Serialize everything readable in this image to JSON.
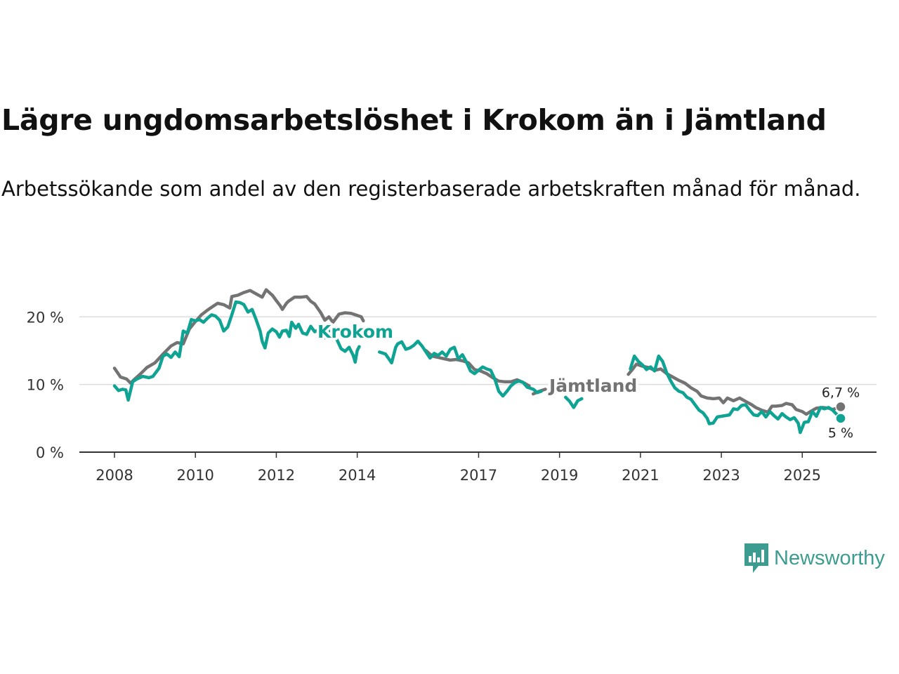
{
  "title": "Lägre ungdomsarbetslöshet i Krokom än i Jämtland",
  "subtitle": "Arbetssökande som andel av den registerbaserade arbetskraften månad för månad.",
  "brand": {
    "name": "Newsworthy",
    "color": "#3c9c8f",
    "icon": "newsworthy-logo-icon"
  },
  "chart_data": {
    "type": "line",
    "title": "Lägre ungdomsarbetslöshet i Krokom än i Jämtland",
    "xlabel": "",
    "ylabel": "",
    "xlim": [
      2008,
      2025.95
    ],
    "ylim": [
      0,
      22
    ],
    "yticks": [
      {
        "value": 0,
        "label": "0 %"
      },
      {
        "value": 10,
        "label": "10 %"
      },
      {
        "value": 20,
        "label": "20 %"
      }
    ],
    "xticks": [
      {
        "value": 2008,
        "label": "2008"
      },
      {
        "value": 2010,
        "label": "2010"
      },
      {
        "value": 2012,
        "label": "2012"
      },
      {
        "value": 2014,
        "label": "2014"
      },
      {
        "value": 2017,
        "label": "2017"
      },
      {
        "value": 2019,
        "label": "2019"
      },
      {
        "value": 2021,
        "label": "2021"
      },
      {
        "value": 2023,
        "label": "2023"
      },
      {
        "value": 2025,
        "label": "2025"
      }
    ],
    "grid": "horizontal",
    "series": [
      {
        "name": "Jämtland",
        "color": "#737373",
        "label": "Jämtland",
        "end_label": "6,7 %",
        "end_value": 6.7,
        "points": [
          [
            2008.0,
            12.4
          ],
          [
            2008.15,
            11.1
          ],
          [
            2008.3,
            10.8
          ],
          [
            2008.4,
            10.2
          ],
          [
            2008.5,
            10.8
          ],
          [
            2008.65,
            11.6
          ],
          [
            2008.8,
            12.5
          ],
          [
            2009.0,
            13.2
          ],
          [
            2009.2,
            14.5
          ],
          [
            2009.4,
            15.7
          ],
          [
            2009.55,
            16.2
          ],
          [
            2009.7,
            16.0
          ],
          [
            2009.85,
            18.2
          ],
          [
            2010.0,
            19.3
          ],
          [
            2010.15,
            20.3
          ],
          [
            2010.3,
            21.0
          ],
          [
            2010.45,
            21.6
          ],
          [
            2010.55,
            22.0
          ],
          [
            2010.7,
            21.8
          ],
          [
            2010.85,
            21.3
          ],
          [
            2010.9,
            23.0
          ],
          [
            2011.05,
            23.2
          ],
          [
            2011.2,
            23.6
          ],
          [
            2011.35,
            23.9
          ],
          [
            2011.5,
            23.4
          ],
          [
            2011.65,
            22.9
          ],
          [
            2011.75,
            24.0
          ],
          [
            2011.9,
            23.2
          ],
          [
            2012.0,
            22.4
          ],
          [
            2012.1,
            21.6
          ],
          [
            2012.15,
            21.1
          ],
          [
            2012.25,
            22.0
          ],
          [
            2012.3,
            22.3
          ],
          [
            2012.45,
            22.9
          ],
          [
            2012.6,
            22.9
          ],
          [
            2012.75,
            23.0
          ],
          [
            2012.85,
            22.3
          ],
          [
            2012.95,
            21.9
          ],
          [
            2013.1,
            20.6
          ],
          [
            2013.2,
            19.5
          ],
          [
            2013.3,
            20.0
          ],
          [
            2013.4,
            19.2
          ],
          [
            2013.55,
            20.4
          ],
          [
            2013.7,
            20.6
          ],
          [
            2013.85,
            20.5
          ],
          [
            2014.0,
            20.2
          ],
          [
            2014.1,
            20.0
          ],
          [
            2014.15,
            19.4
          ]
        ],
        "segments2": [
          [
            2018.35,
            8.6
          ],
          [
            2018.5,
            9.0
          ],
          [
            2018.65,
            9.3
          ]
        ],
        "segments3": [
          [
            2020.7,
            11.5
          ],
          [
            2020.8,
            12.2
          ],
          [
            2020.9,
            13.0
          ],
          [
            2021.05,
            12.7
          ],
          [
            2021.2,
            12.5
          ],
          [
            2021.35,
            12.1
          ],
          [
            2021.5,
            12.3
          ],
          [
            2021.65,
            11.6
          ],
          [
            2021.8,
            11.1
          ],
          [
            2021.95,
            10.6
          ],
          [
            2022.1,
            10.2
          ],
          [
            2022.25,
            9.5
          ],
          [
            2022.4,
            9.0
          ],
          [
            2022.5,
            8.3
          ],
          [
            2022.65,
            8.0
          ],
          [
            2022.8,
            7.9
          ],
          [
            2022.95,
            8.0
          ],
          [
            2023.05,
            7.3
          ],
          [
            2023.15,
            8.0
          ],
          [
            2023.3,
            7.6
          ],
          [
            2023.45,
            8.0
          ],
          [
            2023.6,
            7.5
          ],
          [
            2023.75,
            7.0
          ],
          [
            2023.85,
            6.6
          ],
          [
            2024.0,
            6.2
          ],
          [
            2024.15,
            5.9
          ],
          [
            2024.25,
            6.8
          ],
          [
            2024.35,
            6.8
          ],
          [
            2024.5,
            6.9
          ],
          [
            2024.6,
            7.2
          ],
          [
            2024.75,
            7.0
          ],
          [
            2024.85,
            6.3
          ],
          [
            2025.0,
            6.0
          ],
          [
            2025.1,
            5.6
          ],
          [
            2025.2,
            6.0
          ],
          [
            2025.35,
            6.5
          ],
          [
            2025.5,
            6.6
          ],
          [
            2025.65,
            6.5
          ],
          [
            2025.75,
            6.3
          ],
          [
            2025.85,
            6.5
          ],
          [
            2025.95,
            6.7
          ]
        ],
        "segments_mid": [
          [
            2015.7,
            15.0
          ],
          [
            2015.85,
            14.2
          ],
          [
            2016.0,
            14.0
          ],
          [
            2016.15,
            13.8
          ],
          [
            2016.3,
            13.6
          ],
          [
            2016.45,
            13.7
          ],
          [
            2016.6,
            13.5
          ],
          [
            2016.75,
            13.2
          ],
          [
            2016.9,
            12.2
          ],
          [
            2017.05,
            12.0
          ],
          [
            2017.2,
            11.6
          ],
          [
            2017.35,
            11.0
          ],
          [
            2017.5,
            10.5
          ],
          [
            2017.65,
            10.4
          ],
          [
            2017.8,
            10.4
          ],
          [
            2017.95,
            10.7
          ],
          [
            2018.1,
            10.3
          ],
          [
            2018.25,
            9.8
          ]
        ]
      },
      {
        "name": "Krokom",
        "color": "#0ea393",
        "label": "Krokom",
        "end_label": "5 %",
        "end_value": 5.0,
        "points": [
          [
            2008.0,
            9.8
          ],
          [
            2008.1,
            9.1
          ],
          [
            2008.2,
            9.3
          ],
          [
            2008.28,
            9.2
          ],
          [
            2008.34,
            7.7
          ],
          [
            2008.45,
            10.4
          ],
          [
            2008.55,
            10.8
          ],
          [
            2008.7,
            11.2
          ],
          [
            2008.85,
            11.0
          ],
          [
            2008.95,
            11.2
          ],
          [
            2009.1,
            12.4
          ],
          [
            2009.2,
            14.2
          ],
          [
            2009.3,
            14.5
          ],
          [
            2009.4,
            14.0
          ],
          [
            2009.5,
            14.8
          ],
          [
            2009.6,
            14.1
          ],
          [
            2009.7,
            17.9
          ],
          [
            2009.8,
            17.6
          ],
          [
            2009.9,
            19.6
          ],
          [
            2010.0,
            19.4
          ],
          [
            2010.1,
            19.6
          ],
          [
            2010.2,
            19.2
          ],
          [
            2010.3,
            19.8
          ],
          [
            2010.4,
            20.3
          ],
          [
            2010.5,
            20.1
          ],
          [
            2010.6,
            19.5
          ],
          [
            2010.7,
            17.9
          ],
          [
            2010.8,
            18.5
          ],
          [
            2010.9,
            20.3
          ],
          [
            2011.0,
            22.2
          ],
          [
            2011.1,
            22.1
          ],
          [
            2011.2,
            21.8
          ],
          [
            2011.3,
            20.7
          ],
          [
            2011.4,
            21.1
          ],
          [
            2011.5,
            19.6
          ],
          [
            2011.6,
            17.9
          ],
          [
            2011.65,
            16.4
          ],
          [
            2011.72,
            15.4
          ],
          [
            2011.8,
            17.6
          ],
          [
            2011.9,
            18.2
          ],
          [
            2012.0,
            17.8
          ],
          [
            2012.08,
            17.0
          ],
          [
            2012.15,
            17.9
          ],
          [
            2012.25,
            18.0
          ],
          [
            2012.32,
            17.1
          ],
          [
            2012.38,
            19.2
          ],
          [
            2012.48,
            18.3
          ],
          [
            2012.55,
            18.9
          ],
          [
            2012.65,
            17.6
          ],
          [
            2012.75,
            17.4
          ],
          [
            2012.85,
            18.6
          ],
          [
            2012.95,
            17.8
          ],
          [
            2013.05,
            18.1
          ],
          [
            2013.15,
            17.5
          ],
          [
            2013.2,
            16.9
          ],
          [
            2013.3,
            18.1
          ],
          [
            2013.4,
            17.2
          ],
          [
            2013.5,
            16.6
          ],
          [
            2013.6,
            15.3
          ],
          [
            2013.7,
            14.9
          ],
          [
            2013.8,
            15.5
          ],
          [
            2013.9,
            14.3
          ],
          [
            2013.95,
            13.3
          ],
          [
            2014.0,
            15.0
          ],
          [
            2014.05,
            15.6
          ]
        ],
        "segments_mid": [
          [
            2014.55,
            14.8
          ],
          [
            2014.7,
            14.5
          ],
          [
            2014.85,
            13.2
          ],
          [
            2014.95,
            15.5
          ],
          [
            2015.0,
            16.0
          ],
          [
            2015.1,
            16.3
          ],
          [
            2015.2,
            15.2
          ],
          [
            2015.3,
            15.4
          ],
          [
            2015.4,
            15.8
          ],
          [
            2015.5,
            16.4
          ],
          [
            2015.6,
            15.7
          ],
          [
            2015.7,
            14.8
          ],
          [
            2015.8,
            13.9
          ],
          [
            2015.9,
            14.6
          ],
          [
            2016.0,
            14.3
          ],
          [
            2016.1,
            14.8
          ],
          [
            2016.2,
            14.2
          ],
          [
            2016.3,
            15.2
          ],
          [
            2016.4,
            15.5
          ],
          [
            2016.5,
            13.8
          ],
          [
            2016.6,
            14.4
          ],
          [
            2016.7,
            13.3
          ],
          [
            2016.8,
            12.0
          ],
          [
            2016.9,
            11.6
          ],
          [
            2017.0,
            12.1
          ],
          [
            2017.1,
            12.6
          ],
          [
            2017.2,
            12.3
          ],
          [
            2017.3,
            12.1
          ],
          [
            2017.4,
            10.8
          ],
          [
            2017.5,
            9.0
          ],
          [
            2017.6,
            8.3
          ],
          [
            2017.7,
            9.0
          ],
          [
            2017.8,
            9.8
          ],
          [
            2017.9,
            10.3
          ],
          [
            2018.0,
            10.5
          ],
          [
            2018.1,
            10.3
          ],
          [
            2018.2,
            9.6
          ],
          [
            2018.35,
            9.3
          ],
          [
            2018.45,
            8.8
          ],
          [
            2018.55,
            9.0
          ]
        ],
        "segments2": [
          [
            2019.15,
            8.1
          ],
          [
            2019.25,
            7.5
          ],
          [
            2019.35,
            6.6
          ],
          [
            2019.45,
            7.6
          ],
          [
            2019.55,
            7.9
          ]
        ],
        "segments3": [
          [
            2020.75,
            12.3
          ],
          [
            2020.85,
            14.2
          ],
          [
            2020.95,
            13.4
          ],
          [
            2021.05,
            12.9
          ],
          [
            2021.15,
            12.2
          ],
          [
            2021.25,
            12.6
          ],
          [
            2021.35,
            12.0
          ],
          [
            2021.45,
            14.2
          ],
          [
            2021.55,
            13.4
          ],
          [
            2021.65,
            11.7
          ],
          [
            2021.75,
            10.5
          ],
          [
            2021.85,
            9.5
          ],
          [
            2021.95,
            9.0
          ],
          [
            2022.05,
            8.8
          ],
          [
            2022.15,
            8.1
          ],
          [
            2022.25,
            7.8
          ],
          [
            2022.35,
            7.0
          ],
          [
            2022.45,
            6.2
          ],
          [
            2022.55,
            5.8
          ],
          [
            2022.65,
            5.0
          ],
          [
            2022.7,
            4.2
          ],
          [
            2022.8,
            4.3
          ],
          [
            2022.9,
            5.2
          ],
          [
            2023.0,
            5.3
          ],
          [
            2023.1,
            5.4
          ],
          [
            2023.2,
            5.5
          ],
          [
            2023.3,
            6.4
          ],
          [
            2023.4,
            6.3
          ],
          [
            2023.5,
            6.9
          ],
          [
            2023.6,
            7.0
          ],
          [
            2023.7,
            6.2
          ],
          [
            2023.8,
            5.5
          ],
          [
            2023.9,
            5.4
          ],
          [
            2024.0,
            6.0
          ],
          [
            2024.1,
            5.2
          ],
          [
            2024.2,
            6.0
          ],
          [
            2024.3,
            5.4
          ],
          [
            2024.4,
            4.9
          ],
          [
            2024.5,
            5.7
          ],
          [
            2024.6,
            5.2
          ],
          [
            2024.7,
            4.8
          ],
          [
            2024.8,
            5.1
          ],
          [
            2024.9,
            4.3
          ],
          [
            2024.95,
            2.9
          ],
          [
            2025.05,
            4.4
          ],
          [
            2025.15,
            4.5
          ],
          [
            2025.25,
            6.0
          ],
          [
            2025.35,
            5.3
          ],
          [
            2025.45,
            6.6
          ],
          [
            2025.55,
            6.4
          ],
          [
            2025.65,
            6.6
          ],
          [
            2025.75,
            6.2
          ],
          [
            2025.85,
            5.6
          ],
          [
            2025.95,
            5.0
          ]
        ]
      }
    ]
  }
}
